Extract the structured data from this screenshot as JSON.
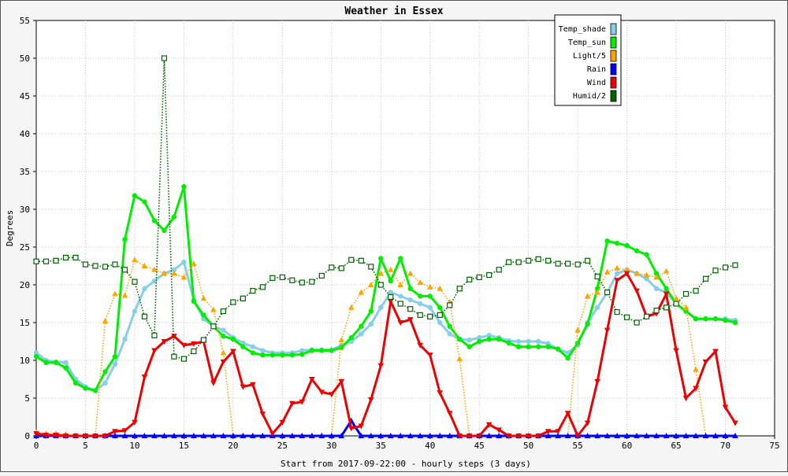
{
  "chart_data": {
    "type": "line",
    "title": "Weather in Essex",
    "xlabel": "Start from 2017-09-22:00 - hourly steps (3 days)",
    "ylabel": "Degrees",
    "xlim": [
      0,
      75
    ],
    "ylim": [
      0,
      55
    ],
    "x_ticks": [
      0,
      5,
      10,
      15,
      20,
      25,
      30,
      35,
      40,
      45,
      50,
      55,
      60,
      65,
      70,
      75
    ],
    "y_ticks": [
      0,
      5,
      10,
      15,
      20,
      25,
      30,
      35,
      40,
      45,
      50,
      55
    ],
    "grid": true,
    "legend_position": "top-right",
    "x": [
      0,
      1,
      2,
      3,
      4,
      5,
      6,
      7,
      8,
      9,
      10,
      11,
      12,
      13,
      14,
      15,
      16,
      17,
      18,
      19,
      20,
      21,
      22,
      23,
      24,
      25,
      26,
      27,
      28,
      29,
      30,
      31,
      32,
      33,
      34,
      35,
      36,
      37,
      38,
      39,
      40,
      41,
      42,
      43,
      44,
      45,
      46,
      47,
      48,
      49,
      50,
      51,
      52,
      53,
      54,
      55,
      56,
      57,
      58,
      59,
      60,
      61,
      62,
      63,
      64,
      65,
      66,
      67,
      68,
      69,
      70,
      71
    ],
    "series": [
      {
        "name": "Temp_shade",
        "color": "#87ceeb",
        "marker": "dot",
        "line": "solid",
        "values": [
          11,
          10,
          9.8,
          9.7,
          7.5,
          6.5,
          6,
          7,
          9.5,
          12.8,
          16.5,
          19.5,
          20.5,
          21.5,
          22,
          23,
          18,
          15.5,
          14.5,
          14,
          13,
          12.3,
          11.8,
          11.3,
          11,
          11,
          11,
          11.3,
          11.4,
          11.4,
          11.4,
          12,
          12.5,
          13.5,
          14.8,
          17,
          19,
          18.5,
          18,
          17.5,
          17,
          15,
          13.5,
          12.8,
          12.7,
          13,
          13.3,
          13,
          12.6,
          12.5,
          12.5,
          12.5,
          12.2,
          11.5,
          11,
          12,
          15,
          17,
          19,
          21.5,
          22,
          21.5,
          20.8,
          19.5,
          19,
          17.5,
          16.5,
          15.5,
          15.5,
          15.5,
          15.5,
          15.3
        ]
      },
      {
        "name": "Temp_sun",
        "color": "#00ee00",
        "marker": "dot",
        "line": "solid",
        "values": [
          10.5,
          9.7,
          9.7,
          9,
          7,
          6.3,
          6,
          8.5,
          10.5,
          26,
          31.8,
          31,
          28.5,
          27.2,
          29,
          33,
          17.8,
          16,
          14.5,
          13.2,
          12.8,
          11.8,
          11,
          10.7,
          10.7,
          10.7,
          10.7,
          10.8,
          11.3,
          11.3,
          11.3,
          11.7,
          13,
          14.5,
          16.5,
          23.5,
          20.5,
          23.5,
          19.5,
          18.5,
          18.5,
          17,
          14.5,
          12.8,
          11.8,
          12.5,
          12.8,
          12.8,
          12.3,
          11.8,
          11.8,
          11.8,
          11.8,
          11.5,
          10.3,
          12.3,
          14.8,
          19.5,
          25.8,
          25.5,
          25.2,
          24.5,
          24,
          21.5,
          19.5,
          17.5,
          16.5,
          15.5,
          15.5,
          15.5,
          15.3,
          15
        ]
      },
      {
        "name": "Light/5",
        "color": "#ffa500",
        "marker": "triangle-up",
        "line": "dotted",
        "values": [
          0.5,
          0.3,
          0.3,
          0.2,
          0,
          0,
          0,
          15.2,
          18.8,
          18.6,
          23.3,
          22.5,
          22,
          21.5,
          21.5,
          21,
          22.8,
          18.2,
          16.7,
          11,
          0,
          0,
          0,
          0,
          0,
          0,
          0,
          0,
          0,
          0,
          0,
          12.7,
          17,
          19,
          20,
          21.5,
          22,
          20,
          21.5,
          20.3,
          19.7,
          19.5,
          17.7,
          10.2,
          0,
          0,
          0,
          0,
          0,
          0,
          0,
          0,
          0,
          0,
          0,
          14,
          18.5,
          19,
          21.7,
          22.2,
          22,
          21.5,
          21.3,
          21,
          21.8,
          18.2,
          17,
          8.8,
          0,
          0,
          0,
          0
        ]
      },
      {
        "name": "Rain",
        "color": "#0000ff",
        "marker": "triangle-up",
        "line": "solid",
        "values": [
          0,
          0,
          0,
          0,
          0,
          0,
          0,
          0,
          0,
          0,
          0,
          0,
          0,
          0,
          0,
          0,
          0,
          0,
          0,
          0,
          0,
          0,
          0,
          0,
          0,
          0,
          0,
          0,
          0,
          0,
          0,
          0,
          2,
          0,
          0,
          0,
          0,
          0,
          0,
          0,
          0,
          0,
          0,
          0,
          0,
          0,
          0,
          0,
          0,
          0,
          0,
          0,
          0,
          0,
          0,
          0,
          0,
          0,
          0,
          0,
          0,
          0,
          0,
          0,
          0,
          0,
          0,
          0,
          0,
          0,
          0,
          0
        ]
      },
      {
        "name": "Wind",
        "color": "#ee0000",
        "marker": "triangle-down",
        "line": "solid",
        "values": [
          0.3,
          0.1,
          0.1,
          0,
          0,
          0,
          0,
          0,
          0.6,
          0.7,
          1.8,
          7.8,
          11.3,
          12.5,
          13.2,
          12,
          12.2,
          12.5,
          7,
          9.8,
          11.2,
          6.5,
          6.8,
          2.9,
          0.3,
          1.8,
          4.3,
          4.5,
          7.5,
          5.8,
          5.5,
          7.2,
          1,
          1.3,
          4.8,
          9.3,
          17.8,
          15,
          15.4,
          12,
          10.7,
          5.7,
          3,
          0,
          0,
          0,
          1.5,
          0.8,
          0,
          0,
          0,
          0,
          0.6,
          0.6,
          3,
          0,
          1.7,
          7.2,
          14,
          20.6,
          21.5,
          19.2,
          15.8,
          16.2,
          18.8,
          11.3,
          5,
          6.3,
          9.8,
          11.2,
          3.8,
          1.7
        ]
      },
      {
        "name": "Humid/2",
        "color": "#006400",
        "marker": "square-open",
        "line": "dotted",
        "values": [
          23.1,
          23.1,
          23.2,
          23.6,
          23.6,
          22.7,
          22.5,
          22.4,
          22.7,
          22,
          20.4,
          15.8,
          13.3,
          50,
          10.5,
          10.2,
          11.2,
          12.7,
          14.5,
          16.5,
          17.7,
          18.2,
          19.2,
          19.7,
          20.9,
          21,
          20.6,
          20.3,
          20.4,
          21.2,
          22.3,
          22.2,
          23.3,
          23.2,
          22.4,
          20,
          18.4,
          17.5,
          16.8,
          16,
          15.8,
          16,
          17.3,
          19.5,
          20.7,
          21,
          21.3,
          22,
          23,
          23,
          23.2,
          23.4,
          23.2,
          22.8,
          22.8,
          22.7,
          23.2,
          21.1,
          19,
          16.4,
          15.7,
          15,
          15.8,
          16.6,
          17,
          17.5,
          18.8,
          19.2,
          20.8,
          21.9,
          22.3,
          22.6
        ]
      }
    ]
  }
}
